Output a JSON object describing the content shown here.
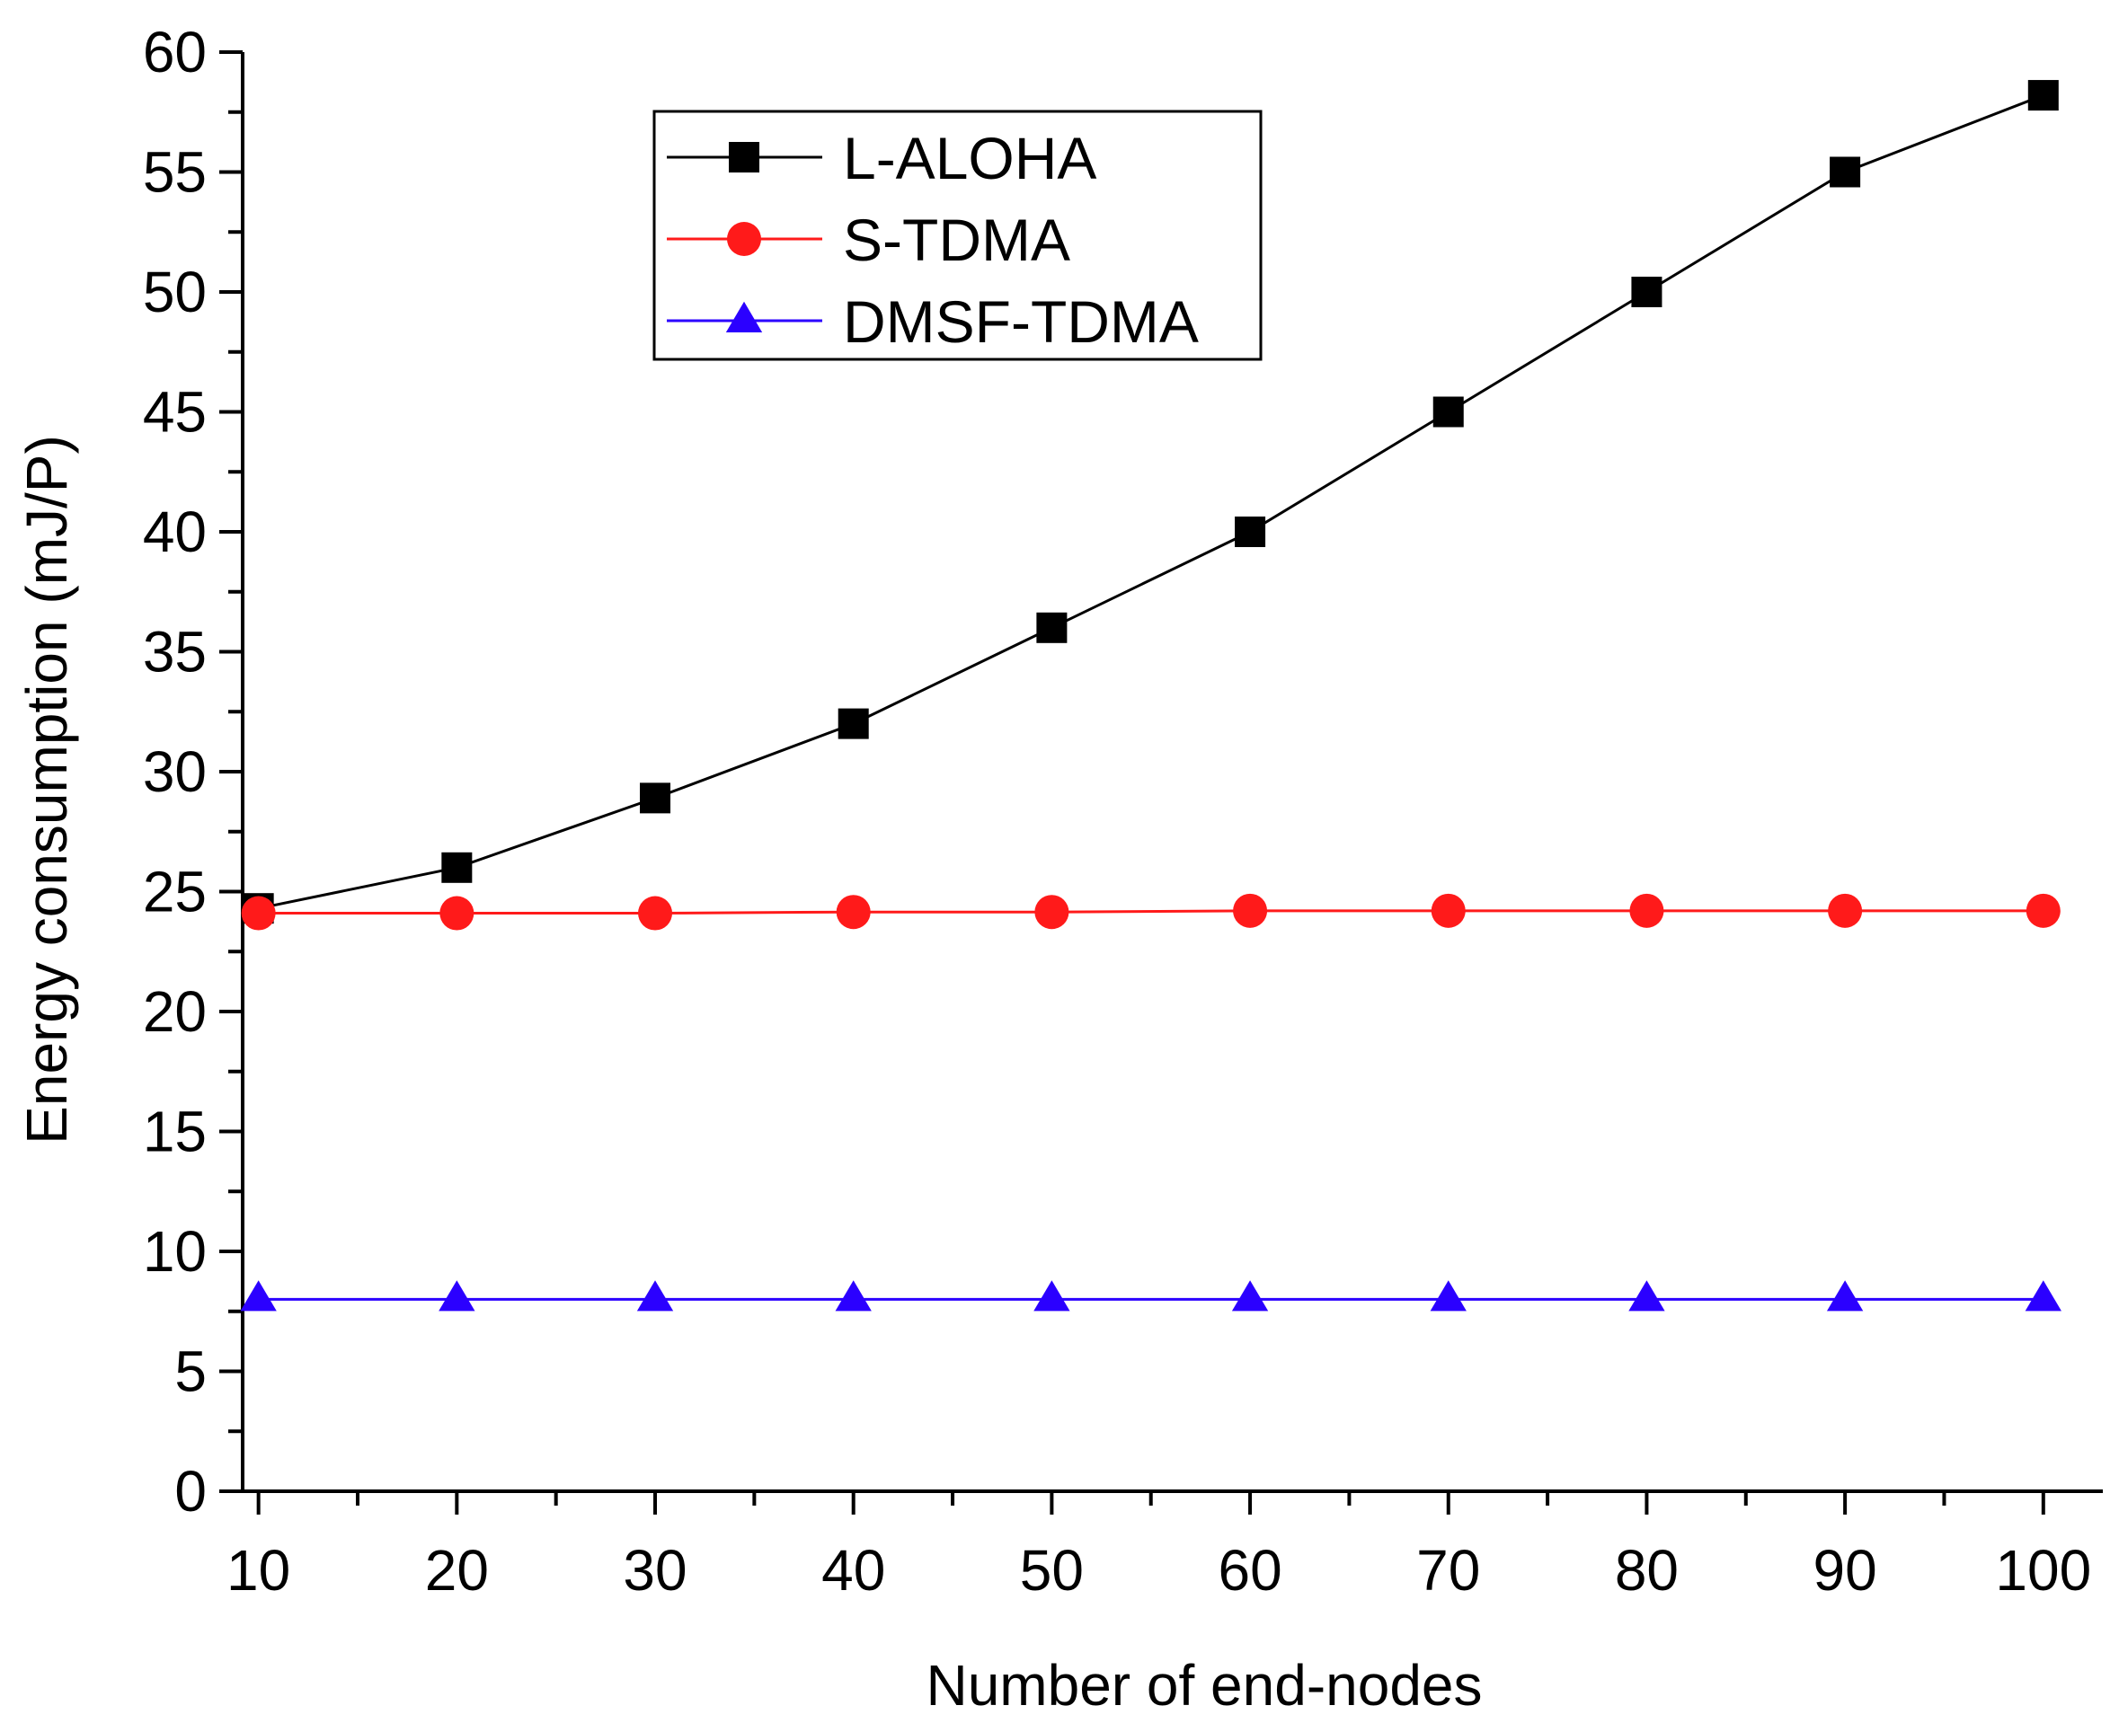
{
  "chart_data": {
    "type": "line",
    "title": "",
    "xlabel": "Number of end-nodes",
    "ylabel": "Energy consumption (mJ/P)",
    "x": [
      10,
      20,
      30,
      40,
      50,
      60,
      70,
      80,
      90,
      100
    ],
    "xlim": [
      9.2,
      103
    ],
    "ylim": [
      0,
      60
    ],
    "xticks": [
      "10",
      "20",
      "30",
      "40",
      "50",
      "60",
      "70",
      "80",
      "90",
      "100"
    ],
    "yticks": [
      "0",
      "5",
      "10",
      "15",
      "20",
      "25",
      "30",
      "35",
      "40",
      "45",
      "50",
      "55",
      "60"
    ],
    "grid": false,
    "legend_position": "top-center",
    "series": [
      {
        "name": "L-ALOHA",
        "color": "#000000",
        "marker": "square",
        "values": [
          24.3,
          26.0,
          28.9,
          32.0,
          36.0,
          40.0,
          45.0,
          50.0,
          55.0,
          58.2
        ]
      },
      {
        "name": "S-TDMA",
        "color": "#ff1a1a",
        "marker": "circle",
        "values": [
          24.1,
          24.1,
          24.1,
          24.15,
          24.15,
          24.2,
          24.2,
          24.2,
          24.2,
          24.2
        ]
      },
      {
        "name": "DMSF-TDMA",
        "color": "#2b00ff",
        "marker": "triangle",
        "values": [
          8.0,
          8.0,
          8.0,
          8.0,
          8.0,
          8.0,
          8.0,
          8.0,
          8.0,
          8.0
        ]
      }
    ]
  }
}
